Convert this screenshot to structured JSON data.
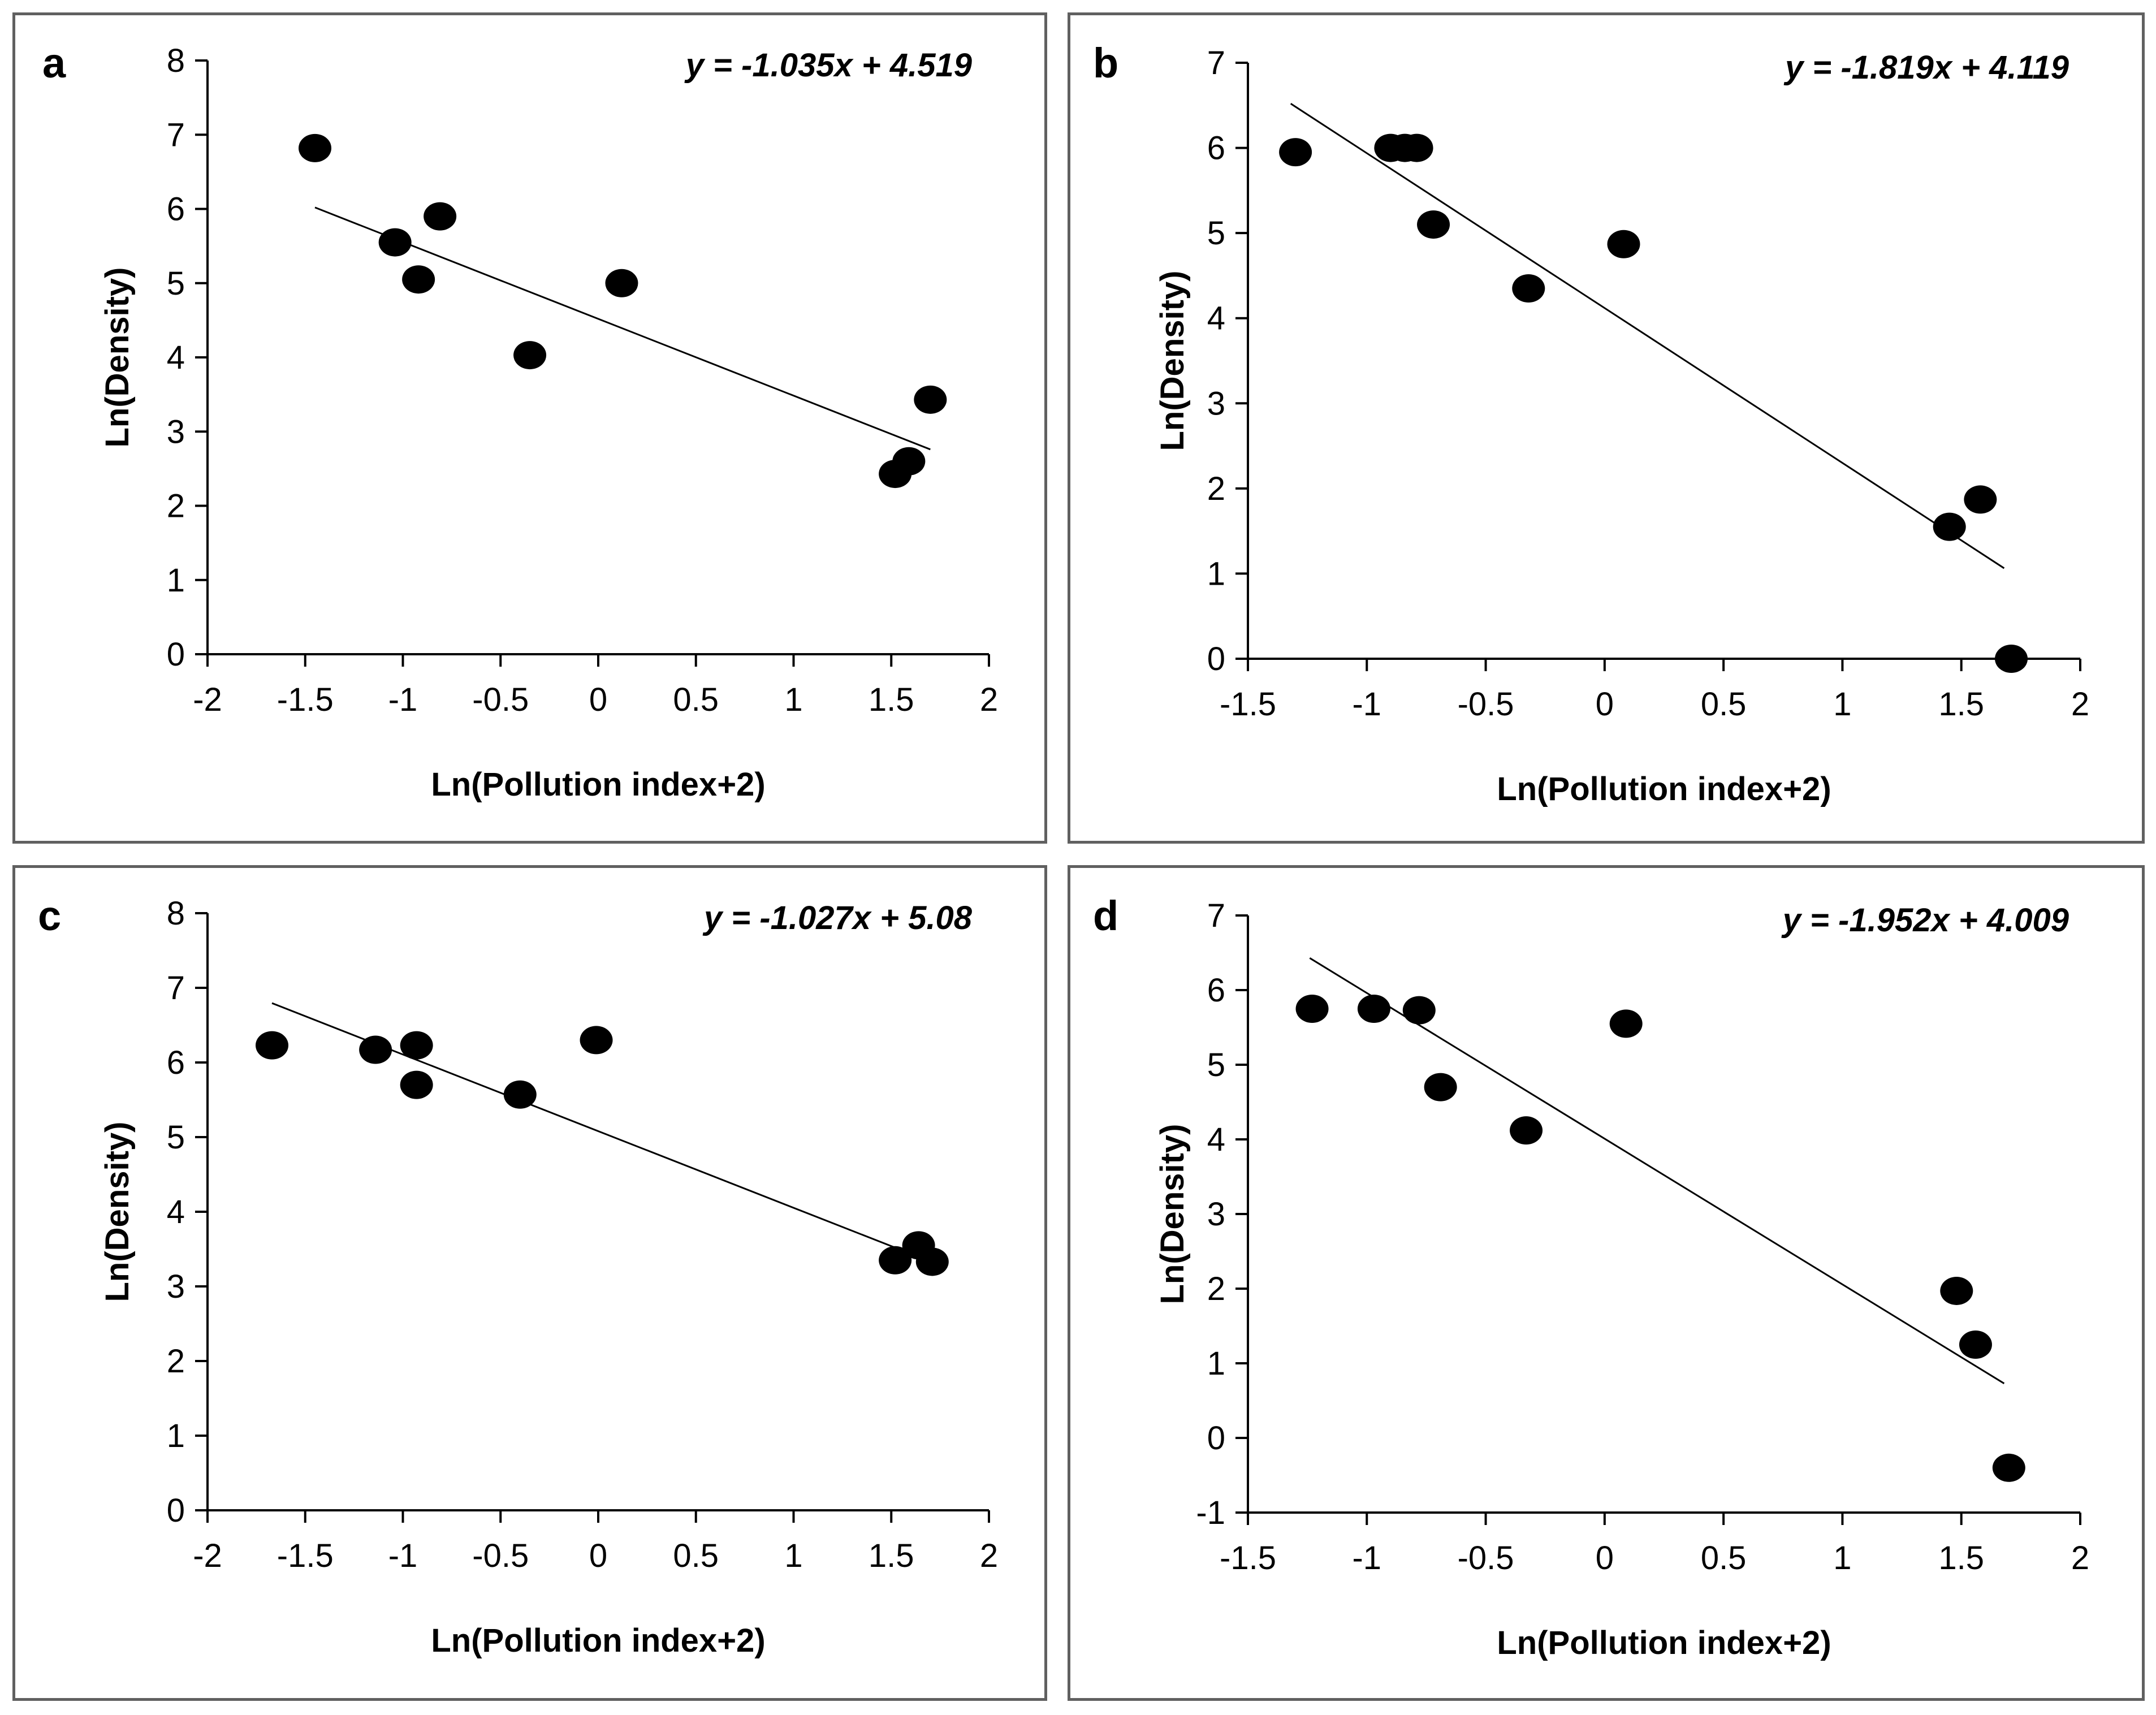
{
  "chart_data": [
    {
      "type": "scatter",
      "panel_label": "a",
      "equation": "y = -1.035x + 4.519",
      "xlabel": "Ln(Pollution index+2)",
      "ylabel": "Ln(Density)",
      "xlim": [
        -2,
        2
      ],
      "ylim": [
        0,
        8
      ],
      "x_ticks": [
        -2,
        -1.5,
        -1,
        -0.5,
        0,
        0.5,
        1,
        1.5,
        2
      ],
      "x_tick_labels": [
        "-2",
        "-1.5",
        "-1",
        "-0.5",
        "0",
        "0.5",
        "1",
        "1.5",
        "2"
      ],
      "y_ticks": [
        0,
        1,
        2,
        3,
        4,
        5,
        6,
        7,
        8
      ],
      "y_tick_labels": [
        "0",
        "1",
        "2",
        "3",
        "4",
        "5",
        "6",
        "7",
        "8"
      ],
      "points": [
        {
          "x": -1.45,
          "y": 6.82
        },
        {
          "x": -1.04,
          "y": 5.55
        },
        {
          "x": -0.92,
          "y": 5.05
        },
        {
          "x": -0.81,
          "y": 5.9
        },
        {
          "x": -0.35,
          "y": 4.03
        },
        {
          "x": 0.12,
          "y": 5.0
        },
        {
          "x": 1.52,
          "y": 2.43
        },
        {
          "x": 1.59,
          "y": 2.6
        },
        {
          "x": 1.7,
          "y": 3.43
        }
      ],
      "trendline": {
        "slope": -1.035,
        "intercept": 4.519,
        "x_range": [
          -1.45,
          1.7
        ]
      }
    },
    {
      "type": "scatter",
      "panel_label": "b",
      "equation": "y = -1.819x + 4.119",
      "xlabel": "Ln(Pollution index+2)",
      "ylabel": "Ln(Density)",
      "xlim": [
        -1.5,
        2
      ],
      "ylim": [
        0,
        7
      ],
      "x_ticks": [
        -1.5,
        -1,
        -0.5,
        0,
        0.5,
        1,
        1.5,
        2
      ],
      "x_tick_labels": [
        "-1.5",
        "-1",
        "-0.5",
        "0",
        "0.5",
        "1",
        "1.5",
        "2"
      ],
      "y_ticks": [
        0,
        1,
        2,
        3,
        4,
        5,
        6,
        7
      ],
      "y_tick_labels": [
        "0",
        "1",
        "2",
        "3",
        "4",
        "5",
        "6",
        "7"
      ],
      "points": [
        {
          "x": -1.3,
          "y": 5.95
        },
        {
          "x": -0.9,
          "y": 6.0
        },
        {
          "x": -0.84,
          "y": 6.0
        },
        {
          "x": -0.79,
          "y": 6.0
        },
        {
          "x": -0.72,
          "y": 5.1
        },
        {
          "x": -0.32,
          "y": 4.35
        },
        {
          "x": 0.08,
          "y": 4.87
        },
        {
          "x": 1.45,
          "y": 1.55
        },
        {
          "x": 1.58,
          "y": 1.87
        },
        {
          "x": 1.71,
          "y": 0.0
        }
      ],
      "trendline": {
        "slope": -1.819,
        "intercept": 4.119,
        "x_range": [
          -1.32,
          1.68
        ]
      }
    },
    {
      "type": "scatter",
      "panel_label": "c",
      "equation": "y = -1.027x + 5.08",
      "xlabel": "Ln(Pollution index+2)",
      "ylabel": "Ln(Density)",
      "xlim": [
        -2,
        2
      ],
      "ylim": [
        0,
        8
      ],
      "x_ticks": [
        -2,
        -1.5,
        -1,
        -0.5,
        0,
        0.5,
        1,
        1.5,
        2
      ],
      "x_tick_labels": [
        "-2",
        "-1.5",
        "-1",
        "-0.5",
        "0",
        "0.5",
        "1",
        "1.5",
        "2"
      ],
      "y_ticks": [
        0,
        1,
        2,
        3,
        4,
        5,
        6,
        7,
        8
      ],
      "y_tick_labels": [
        "0",
        "1",
        "2",
        "3",
        "4",
        "5",
        "6",
        "7",
        "8"
      ],
      "points": [
        {
          "x": -1.67,
          "y": 6.23
        },
        {
          "x": -1.14,
          "y": 6.17
        },
        {
          "x": -0.93,
          "y": 6.23
        },
        {
          "x": -0.93,
          "y": 5.7
        },
        {
          "x": -0.4,
          "y": 5.57
        },
        {
          "x": -0.01,
          "y": 6.3
        },
        {
          "x": 1.52,
          "y": 3.35
        },
        {
          "x": 1.64,
          "y": 3.55
        },
        {
          "x": 1.71,
          "y": 3.33
        }
      ],
      "trendline": {
        "slope": -1.027,
        "intercept": 5.08,
        "x_range": [
          -1.67,
          1.72
        ]
      }
    },
    {
      "type": "scatter",
      "panel_label": "d",
      "equation": "y = -1.952x + 4.009",
      "xlabel": "Ln(Pollution index+2)",
      "ylabel": "Ln(Density)",
      "xlim": [
        -1.5,
        2
      ],
      "ylim": [
        -1,
        7
      ],
      "x_ticks": [
        -1.5,
        -1,
        -0.5,
        0,
        0.5,
        1,
        1.5,
        2
      ],
      "x_tick_labels": [
        "-1.5",
        "-1",
        "-0.5",
        "0",
        "0.5",
        "1",
        "1.5",
        "2"
      ],
      "y_ticks": [
        -1,
        0,
        1,
        2,
        3,
        4,
        5,
        6,
        7
      ],
      "y_tick_labels": [
        "-1",
        "0",
        "1",
        "2",
        "3",
        "4",
        "5",
        "6",
        "7"
      ],
      "points": [
        {
          "x": -1.23,
          "y": 5.75
        },
        {
          "x": -0.97,
          "y": 5.75
        },
        {
          "x": -0.78,
          "y": 5.73
        },
        {
          "x": -0.69,
          "y": 4.7
        },
        {
          "x": -0.33,
          "y": 4.12
        },
        {
          "x": 0.09,
          "y": 5.55
        },
        {
          "x": 1.48,
          "y": 1.97
        },
        {
          "x": 1.56,
          "y": 1.25
        },
        {
          "x": 1.7,
          "y": -0.4
        }
      ],
      "trendline": {
        "slope": -1.952,
        "intercept": 4.009,
        "x_range": [
          -1.24,
          1.68
        ]
      }
    }
  ]
}
